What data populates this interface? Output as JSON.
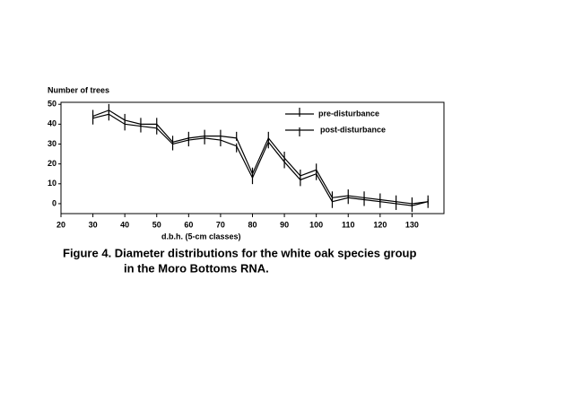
{
  "chart_data": {
    "type": "line",
    "title": "Figure 4.  Diameter distributions for the white oak species group",
    "subtitle": "in the Moro Bottoms RNA.",
    "y_label": "Number of trees",
    "x_label": "d.b.h. (5-cm classes)",
    "x": [
      30,
      35,
      40,
      45,
      50,
      55,
      60,
      65,
      70,
      75,
      80,
      85,
      90,
      95,
      100,
      105,
      110,
      115,
      120,
      125,
      130,
      135
    ],
    "series": [
      {
        "name": "pre-disturbance",
        "color": "#000000",
        "values": [
          44,
          47,
          42,
          40,
          40,
          31,
          33,
          34,
          34,
          33,
          15,
          33,
          23,
          14,
          17,
          3,
          4,
          3,
          2,
          1,
          0,
          1
        ]
      },
      {
        "name": "post-disturbance",
        "color": "#000000",
        "values": [
          43,
          45,
          40,
          39,
          38,
          30,
          32,
          33,
          32,
          29,
          13,
          31,
          21,
          12,
          15,
          1,
          3,
          2,
          1,
          0,
          -1,
          1
        ]
      }
    ],
    "xlim": [
      20,
      140
    ],
    "xticks": [
      20,
      30,
      40,
      50,
      60,
      70,
      80,
      90,
      100,
      110,
      120,
      130
    ],
    "ylim": [
      -5,
      51
    ],
    "yticks": [
      0,
      10,
      20,
      30,
      40,
      50
    ],
    "grid": false,
    "legend": "top-right"
  }
}
